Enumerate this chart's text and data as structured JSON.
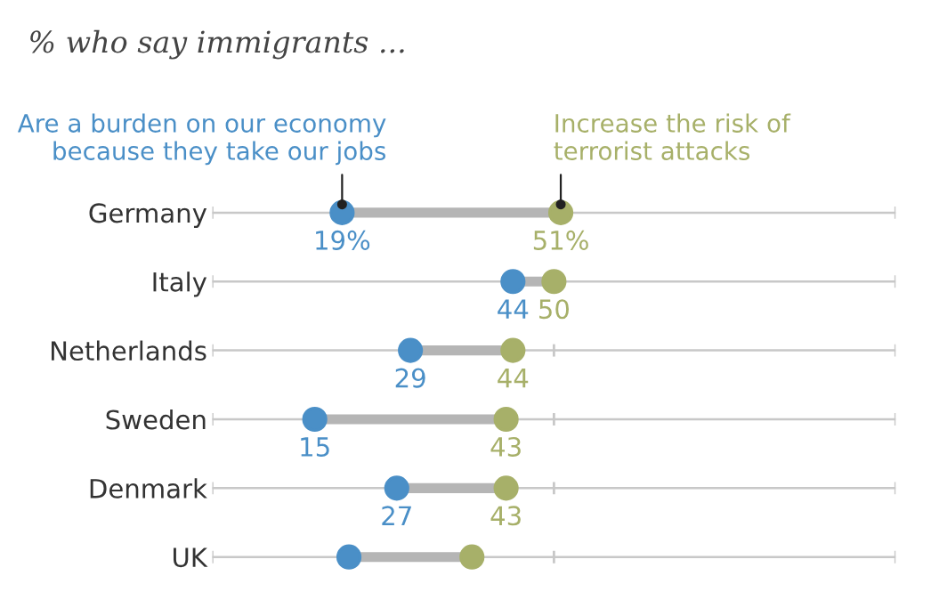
{
  "chart_data": {
    "type": "scatter",
    "title": "% who say immigrants ...",
    "categories": [
      "Germany",
      "Italy",
      "Netherlands",
      "Sweden",
      "Denmark",
      "UK"
    ],
    "orientation": "horizontal",
    "xlim": [
      0,
      100
    ],
    "tick_labels": "y",
    "grid": "y",
    "marker": "circle",
    "legend": false,
    "series": [
      {
        "name": "Are a burden on our economy\nbecause they take our jobs",
        "color": "#4a8fc7",
        "values": [
          19,
          44,
          29,
          15,
          27,
          20
        ],
        "value_labels": [
          "19%",
          "44",
          "29",
          "15",
          "27",
          null
        ]
      },
      {
        "name": "Increase the risk of\nterrorist attacks",
        "color": "#a7b069",
        "values": [
          51,
          50,
          44,
          43,
          43,
          38
        ],
        "value_labels": [
          "51%",
          "50",
          "44",
          "43",
          "43",
          null
        ]
      }
    ]
  }
}
